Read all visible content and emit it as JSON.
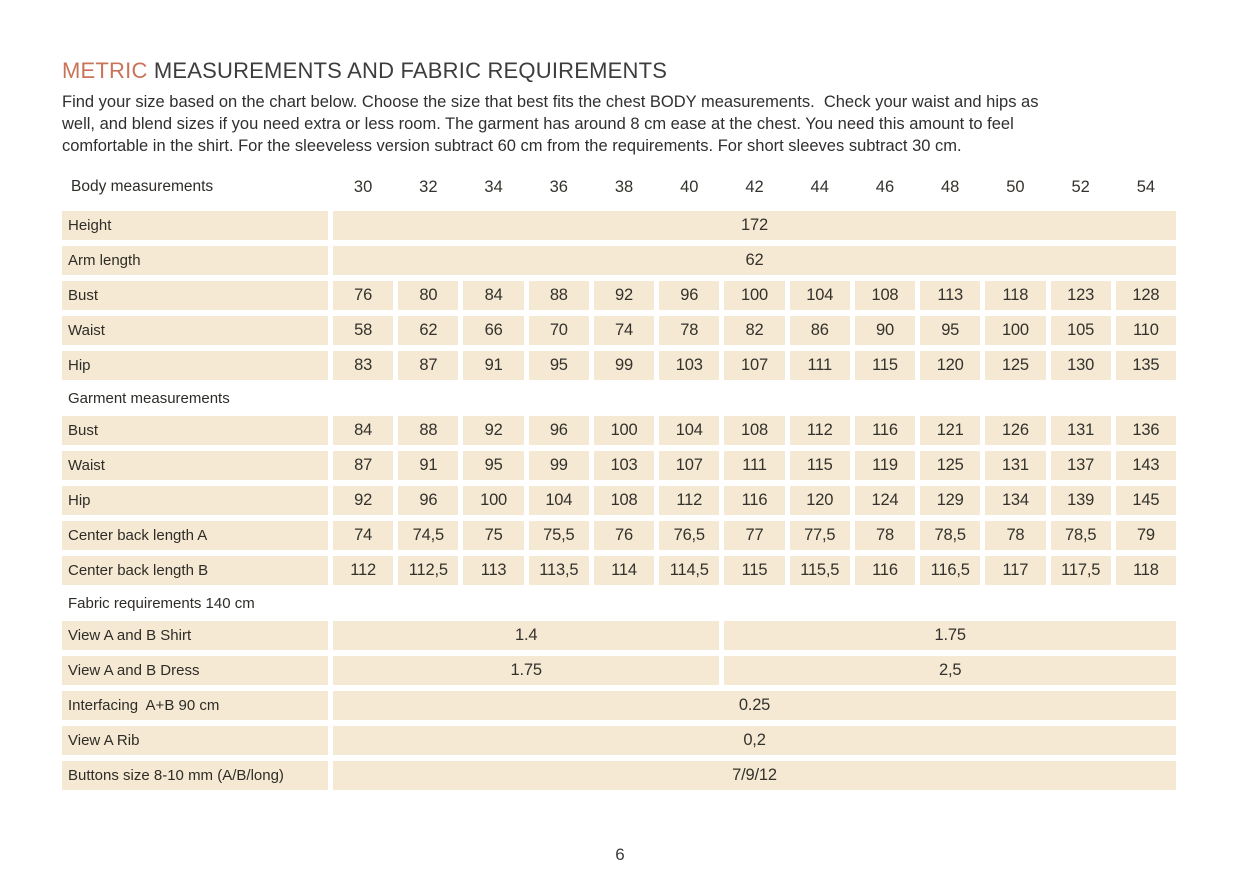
{
  "page": {
    "title_accent": "METRIC",
    "title_rest": " MEASUREMENTS AND FABRIC REQUIREMENTS",
    "intro_lines": [
      "Find your size based on the chart below. Choose the size that best fits the chest BODY measurements.  Check your waist and hips as",
      "well, and blend sizes if you need extra or less room. The garment has around 8 cm ease at the chest. You need this amount to feel",
      "comfortable in the shirt. For the sleeveless version subtract 60 cm from the requirements. For short sleeves subtract 30 cm."
    ],
    "page_number": "6"
  },
  "colors": {
    "accent_orange": "#c8745a",
    "cell_beige": "#f5e9d4",
    "text_dark": "#34322c"
  },
  "table": {
    "header": {
      "label": "Body measurements",
      "sizes": [
        "30",
        "32",
        "34",
        "36",
        "38",
        "40",
        "42",
        "44",
        "46",
        "48",
        "50",
        "52",
        "54"
      ]
    },
    "rows": [
      {
        "type": "fullspan",
        "label": "Height",
        "value": "172"
      },
      {
        "type": "fullspan",
        "label": "Arm length",
        "value": "62"
      },
      {
        "type": "cells",
        "label": "Bust",
        "values": [
          "76",
          "80",
          "84",
          "88",
          "92",
          "96",
          "100",
          "104",
          "108",
          "113",
          "118",
          "123",
          "128"
        ]
      },
      {
        "type": "cells",
        "label": "Waist",
        "values": [
          "58",
          "62",
          "66",
          "70",
          "74",
          "78",
          "82",
          "86",
          "90",
          "95",
          "100",
          "105",
          "110"
        ]
      },
      {
        "type": "cells",
        "label": "Hip",
        "values": [
          "83",
          "87",
          "91",
          "95",
          "99",
          "103",
          "107",
          "111",
          "115",
          "120",
          "125",
          "130",
          "135"
        ]
      },
      {
        "type": "section",
        "label": "Garment measurements"
      },
      {
        "type": "cells",
        "label": "Bust",
        "values": [
          "84",
          "88",
          "92",
          "96",
          "100",
          "104",
          "108",
          "112",
          "116",
          "121",
          "126",
          "131",
          "136"
        ]
      },
      {
        "type": "cells",
        "label": "Waist",
        "values": [
          "87",
          "91",
          "95",
          "99",
          "103",
          "107",
          "111",
          "115",
          "119",
          "125",
          "131",
          "137",
          "143"
        ]
      },
      {
        "type": "cells",
        "label": "Hip",
        "values": [
          "92",
          "96",
          "100",
          "104",
          "108",
          "112",
          "116",
          "120",
          "124",
          "129",
          "134",
          "139",
          "145"
        ]
      },
      {
        "type": "cells",
        "label": "Center back length A",
        "values": [
          "74",
          "74,5",
          "75",
          "75,5",
          "76",
          "76,5",
          "77",
          "77,5",
          "78",
          "78,5",
          "78",
          "78,5",
          "79"
        ]
      },
      {
        "type": "cells",
        "label": "Center back length B",
        "values": [
          "112",
          "112,5",
          "113",
          "113,5",
          "114",
          "114,5",
          "115",
          "115,5",
          "116",
          "116,5",
          "117",
          "117,5",
          "118"
        ]
      },
      {
        "type": "section",
        "label": "Fabric requirements 140 cm"
      },
      {
        "type": "splitspan",
        "label": "View A and B Shirt",
        "left": "1.4",
        "right": "1.75"
      },
      {
        "type": "splitspan",
        "label": "View A and B Dress",
        "left": "1.75",
        "right": "2,5"
      },
      {
        "type": "fullspan",
        "label": "Interfacing  A+B 90 cm",
        "value": "0.25"
      },
      {
        "type": "fullspan",
        "label": "View A Rib",
        "value": "0,2"
      },
      {
        "type": "fullspan",
        "label": "Buttons size 8-10 mm (A/B/long)",
        "value": "7/9/12"
      }
    ]
  }
}
